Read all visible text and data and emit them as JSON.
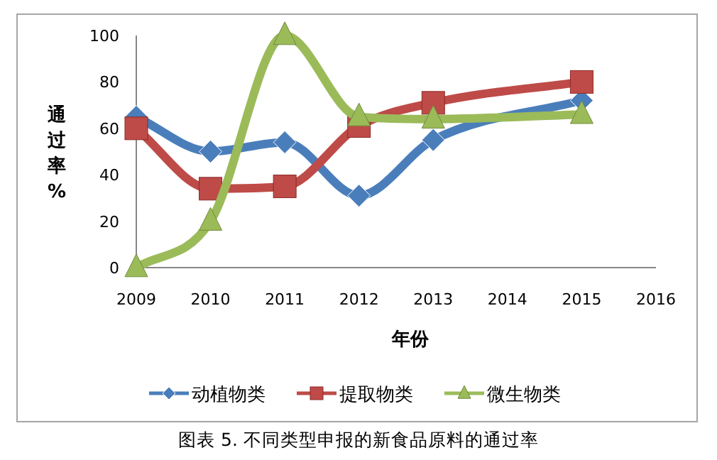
{
  "chart_data": {
    "type": "line",
    "xlabel": "年份",
    "ylabel": "通过率%",
    "x": [
      2009,
      2010,
      2011,
      2012,
      2013,
      2015
    ],
    "series": [
      {
        "name": "动植物类",
        "color": "#4a7ebb",
        "marker": "diamond",
        "values": [
          65,
          50,
          54,
          31,
          55,
          72
        ]
      },
      {
        "name": "提取物类",
        "color": "#be4b48",
        "marker": "square",
        "values": [
          60,
          34,
          35,
          61,
          71,
          80
        ]
      },
      {
        "name": "微生物类",
        "color": "#9bbb59",
        "marker": "triangle",
        "values": [
          0,
          20,
          100,
          65,
          64,
          66
        ]
      }
    ],
    "xlim": [
      2009,
      2016
    ],
    "xticks": [
      2009,
      2010,
      2011,
      2012,
      2013,
      2014,
      2015,
      2016
    ],
    "ylim": [
      0,
      100
    ],
    "yticks": [
      0,
      20,
      40,
      60,
      80,
      100
    ],
    "legend": "bottom",
    "annotations": [
      "图表 5. 不同类型申报的新食品原料的通过率"
    ]
  }
}
